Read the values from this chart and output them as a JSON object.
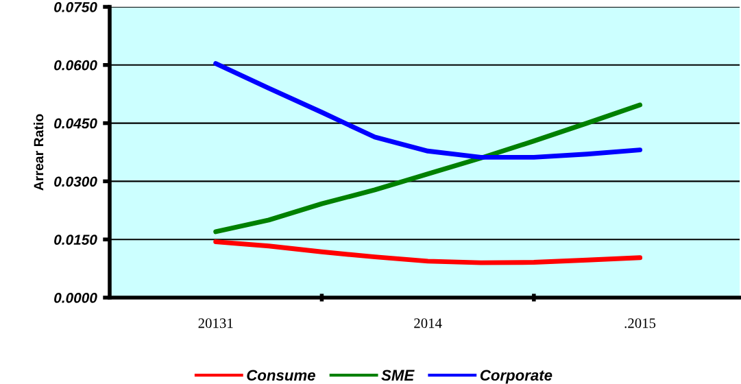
{
  "chart_data": {
    "type": "line",
    "ylabel": "Arrear Ratio",
    "categories": [
      "20131",
      null,
      null,
      null,
      "2014",
      null,
      null,
      null,
      ".2015"
    ],
    "series": [
      {
        "name": "Consume",
        "color": "#ff0000",
        "values": [
          0.0144,
          0.0133,
          0.0118,
          0.0105,
          0.0094,
          0.009,
          0.0091,
          0.0097,
          0.0103
        ]
      },
      {
        "name": "SME",
        "color": "#008000",
        "values": [
          0.017,
          0.02,
          0.0242,
          0.0278,
          0.0319,
          0.036,
          0.0404,
          0.045,
          0.0497
        ]
      },
      {
        "name": "Corporate",
        "color": "#0000ff",
        "values": [
          0.0604,
          0.054,
          0.0478,
          0.0414,
          0.0378,
          0.0362,
          0.0362,
          0.037,
          0.0381
        ]
      }
    ],
    "ylim": [
      0,
      0.075
    ],
    "yticks": [
      {
        "value": 0,
        "label": "0.0000"
      },
      {
        "value": 0.015,
        "label": "0.0150"
      },
      {
        "value": 0.03,
        "label": "0.0300"
      },
      {
        "value": 0.045,
        "label": "0.0450"
      },
      {
        "value": 0.06,
        "label": "0.0600"
      },
      {
        "value": 0.075,
        "label": "0.0750"
      }
    ],
    "grid": "y",
    "legend": "bottom",
    "marker": "none",
    "line_style": "solid"
  }
}
